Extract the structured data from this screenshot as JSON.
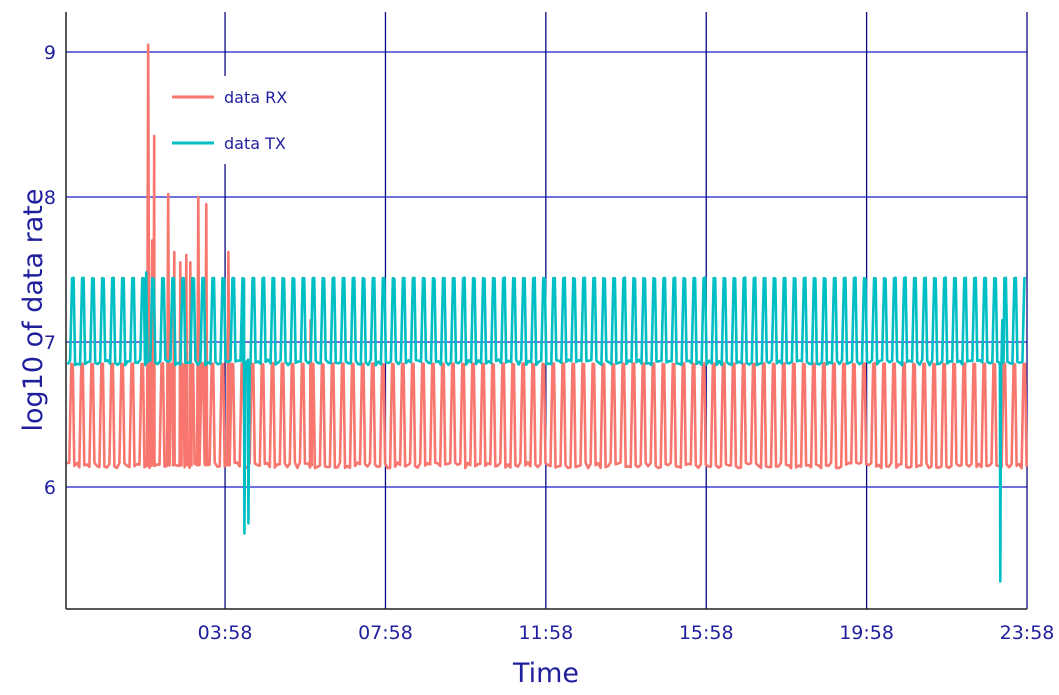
{
  "chart_data": {
    "type": "line",
    "title": "",
    "xlabel": "Time",
    "ylabel": "log10 of data rate",
    "x_unit": "hours of day",
    "xlim": [
      0.0,
      23.967
    ],
    "ylim": [
      5.2,
      9.3
    ],
    "x_ticks": [
      {
        "value": 3.967,
        "label": "03:58"
      },
      {
        "value": 7.967,
        "label": "07:58"
      },
      {
        "value": 11.967,
        "label": "11:58"
      },
      {
        "value": 15.967,
        "label": "15:58"
      },
      {
        "value": 19.967,
        "label": "19:58"
      },
      {
        "value": 23.967,
        "label": "23:58"
      }
    ],
    "y_ticks": [
      {
        "value": 6,
        "label": "6"
      },
      {
        "value": 7,
        "label": "7"
      },
      {
        "value": 8,
        "label": "8"
      },
      {
        "value": 9,
        "label": "9"
      }
    ],
    "grid": true,
    "legend_position": "top-left",
    "series": [
      {
        "name": "data RX",
        "color": "#f8766d",
        "style": "periodic spikes between a low level and a high level",
        "baseline": 6.15,
        "peak": 6.85,
        "period_hours": 0.25,
        "events": [
          {
            "x": 2.05,
            "y": 9.05
          },
          {
            "x": 2.15,
            "y": 7.7
          },
          {
            "x": 2.2,
            "y": 8.42
          },
          {
            "x": 2.55,
            "y": 8.02
          },
          {
            "x": 2.7,
            "y": 7.62
          },
          {
            "x": 2.85,
            "y": 7.55
          },
          {
            "x": 3.0,
            "y": 7.6
          },
          {
            "x": 3.1,
            "y": 7.55
          },
          {
            "x": 3.3,
            "y": 8.0
          },
          {
            "x": 3.5,
            "y": 7.95
          },
          {
            "x": 4.05,
            "y": 7.62
          },
          {
            "x": 6.1,
            "y": 7.15
          }
        ]
      },
      {
        "name": "data TX",
        "color": "#00bfc4",
        "style": "periodic spikes between a low level and a high level",
        "baseline": 6.86,
        "peak": 7.44,
        "period_hours": 0.25,
        "events": [
          {
            "x": 2.0,
            "y": 7.48
          },
          {
            "x": 4.45,
            "y": 5.68
          },
          {
            "x": 4.55,
            "y": 5.75
          },
          {
            "x": 23.3,
            "y": 5.35
          },
          {
            "x": 23.35,
            "y": 7.15
          }
        ]
      }
    ]
  }
}
